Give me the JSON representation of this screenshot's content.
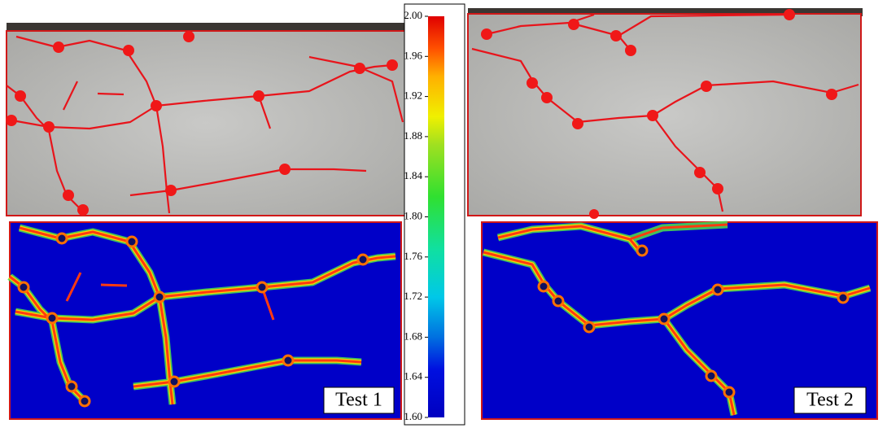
{
  "colorbar": {
    "lim": [
      1.6,
      2.0
    ],
    "ticks": [
      {
        "value": 2.0,
        "label": "2.00"
      },
      {
        "value": 1.96,
        "label": "1.96"
      },
      {
        "value": 1.92,
        "label": "1.92"
      },
      {
        "value": 1.88,
        "label": "1.88"
      },
      {
        "value": 1.84,
        "label": "1.84"
      },
      {
        "value": 1.8,
        "label": "1.80"
      },
      {
        "value": 1.76,
        "label": "1.76"
      },
      {
        "value": 1.72,
        "label": "1.72"
      },
      {
        "value": 1.68,
        "label": "1.68"
      },
      {
        "value": 1.64,
        "label": "1.64"
      },
      {
        "value": 1.6,
        "label": "1.60"
      }
    ]
  },
  "panels": [
    {
      "label": "Test 1"
    },
    {
      "label": "Test 2"
    }
  ]
}
